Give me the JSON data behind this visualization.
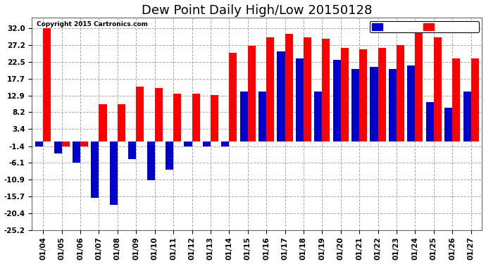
{
  "title": "Dew Point Daily High/Low 20150128",
  "copyright": "Copyright 2015 Cartronics.com",
  "dates": [
    "01/04",
    "01/05",
    "01/06",
    "01/07",
    "01/08",
    "01/09",
    "01/10",
    "01/11",
    "01/12",
    "01/13",
    "01/14",
    "01/15",
    "01/16",
    "01/17",
    "01/18",
    "01/19",
    "01/20",
    "01/21",
    "01/22",
    "01/23",
    "01/24",
    "01/25",
    "01/26",
    "01/27"
  ],
  "high": [
    32.0,
    -1.4,
    -1.4,
    10.5,
    10.5,
    15.5,
    15.0,
    13.5,
    13.5,
    13.0,
    25.0,
    27.0,
    29.5,
    30.5,
    29.5,
    29.0,
    26.5,
    26.0,
    26.5,
    27.2,
    32.0,
    29.5,
    23.5,
    23.5
  ],
  "low": [
    -1.4,
    -3.5,
    -6.0,
    -16.0,
    -18.0,
    -5.0,
    -11.0,
    -8.0,
    -1.4,
    -1.4,
    -1.4,
    14.0,
    14.0,
    25.5,
    23.5,
    14.0,
    23.0,
    20.5,
    21.0,
    20.5,
    21.5,
    11.0,
    9.5,
    14.0
  ],
  "high_color": "#ff0000",
  "low_color": "#0000cc",
  "bg_color": "#ffffff",
  "grid_color": "#aaaaaa",
  "yticks": [
    32.0,
    27.2,
    22.5,
    17.7,
    12.9,
    8.2,
    3.4,
    -1.4,
    -6.1,
    -10.9,
    -15.7,
    -20.4,
    -25.2
  ],
  "ylim": [
    -25.2,
    35.0
  ],
  "title_fontsize": 13,
  "label_fontsize": 7.5
}
